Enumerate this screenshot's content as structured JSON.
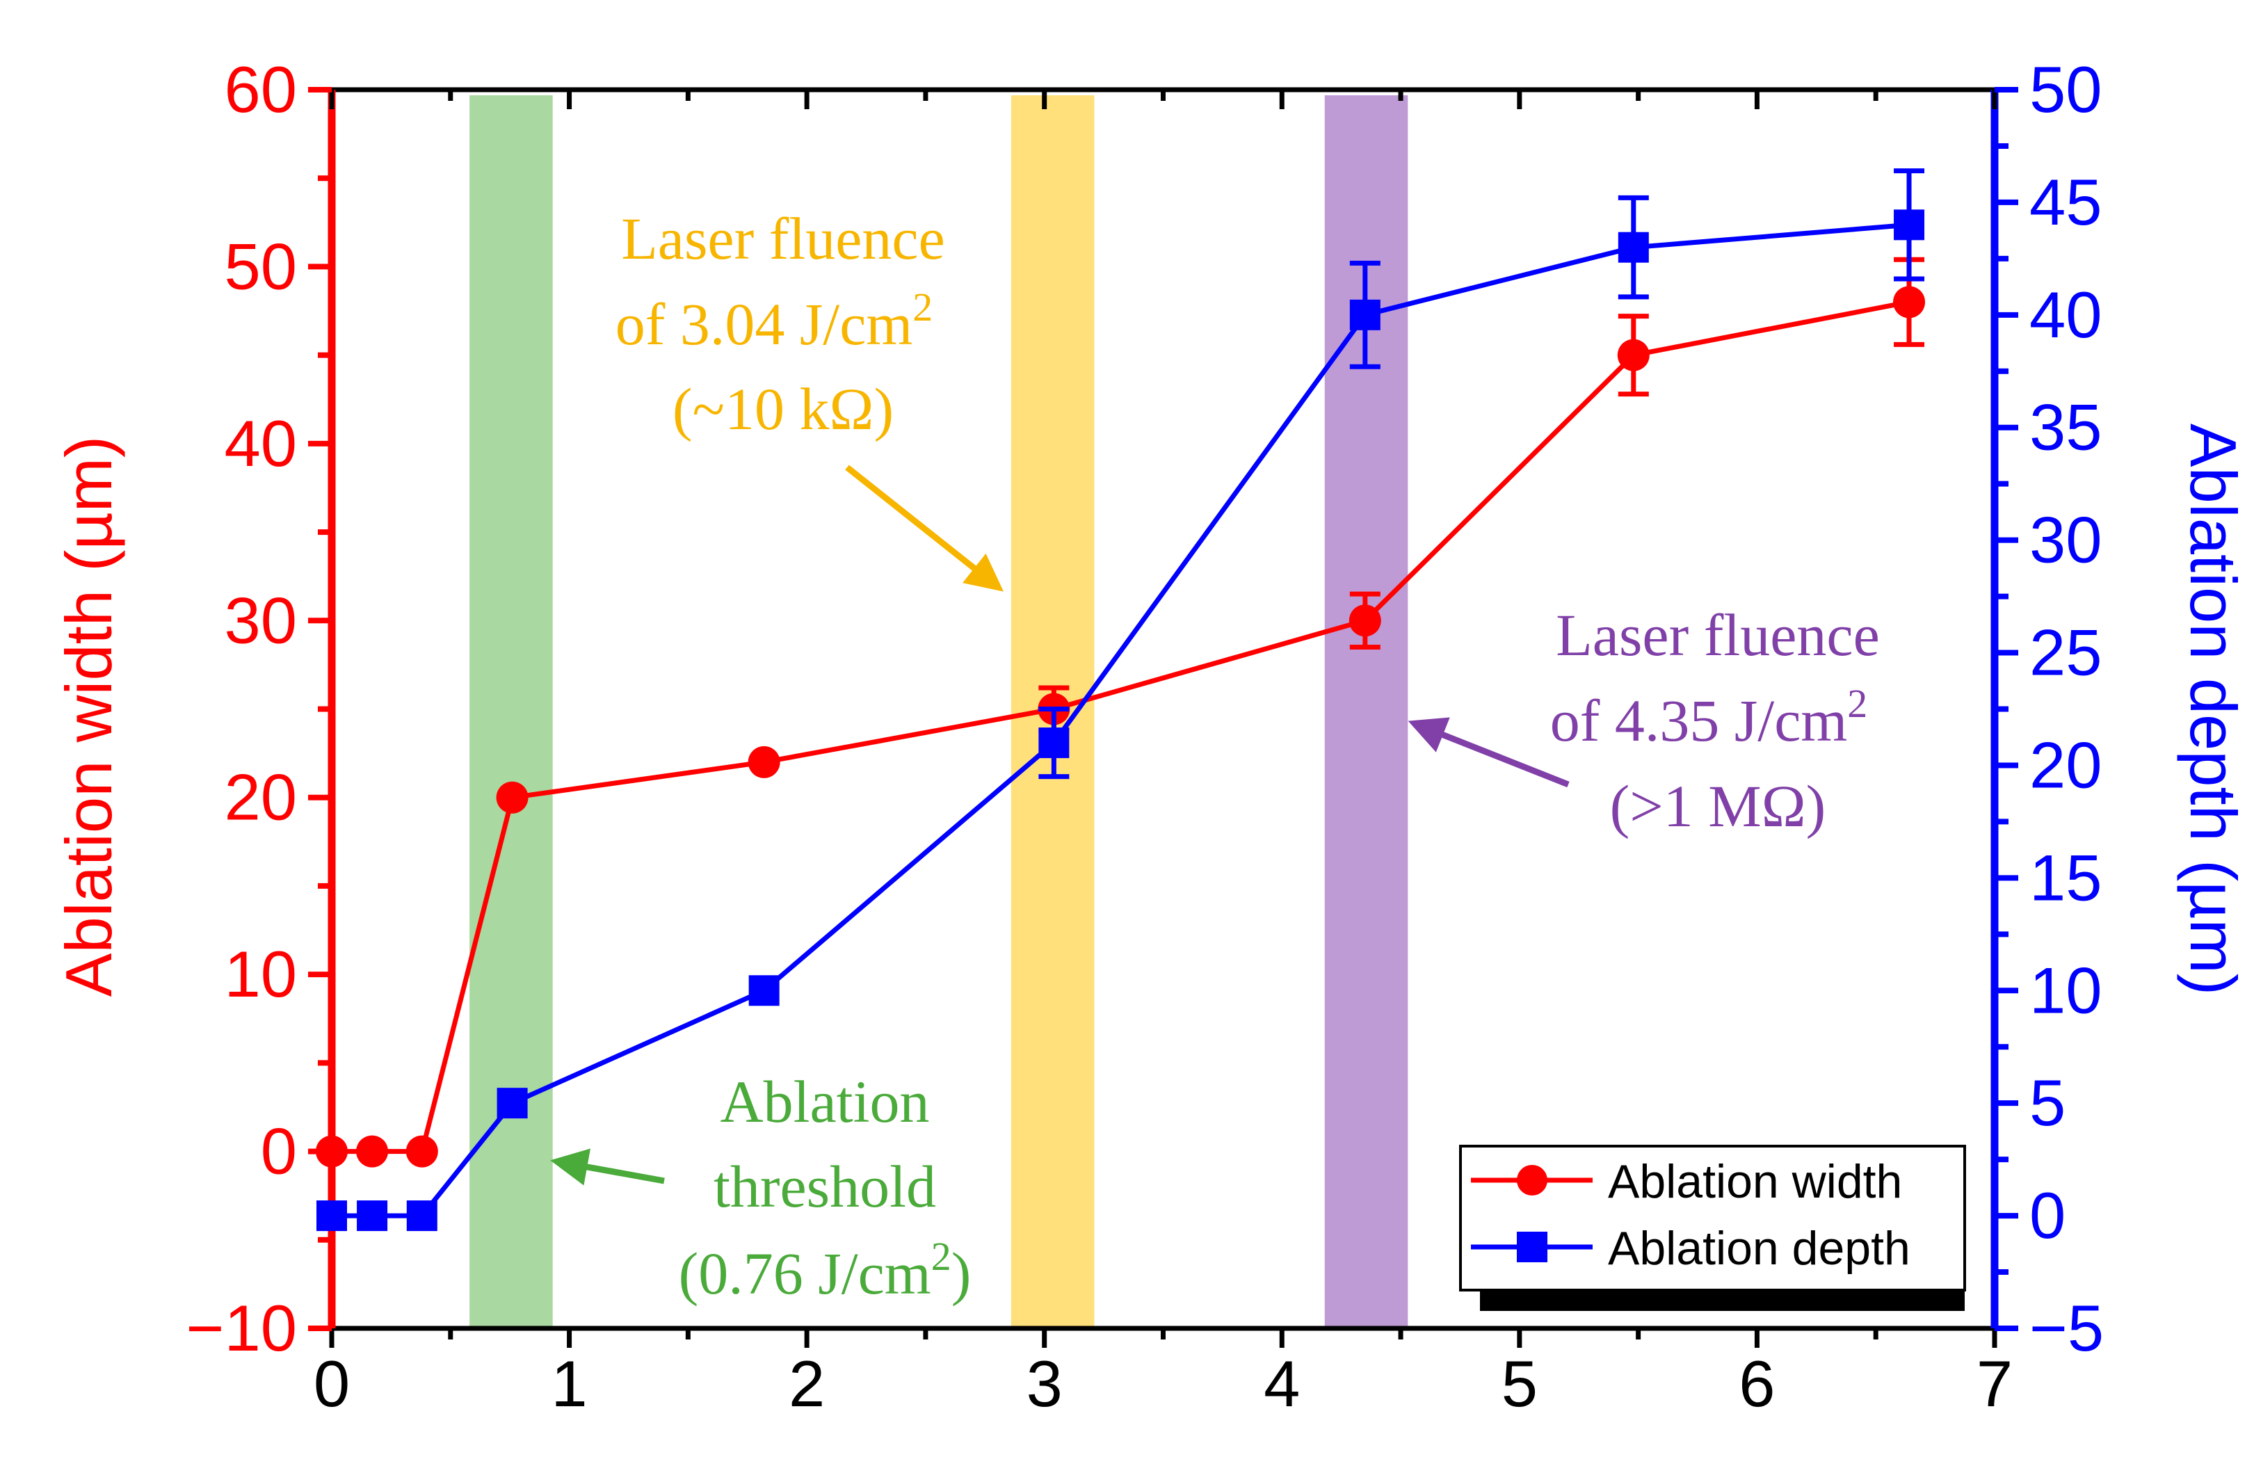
{
  "chart_data": {
    "type": "line",
    "x": [
      0,
      0.17,
      0.38,
      0.76,
      1.82,
      3.04,
      4.35,
      5.48,
      6.64
    ],
    "xlim": [
      0,
      7
    ],
    "x_ticks": [
      "0",
      "1",
      "2",
      "3",
      "4",
      "5",
      "6",
      "7"
    ],
    "xlabel": "",
    "series": [
      {
        "name": "Ablation width",
        "axis": "left",
        "marker": "circle",
        "color": "#ff0000",
        "values": [
          0,
          0,
          0,
          20,
          22,
          25,
          30,
          45,
          48
        ],
        "errors": [
          0,
          0,
          0,
          0,
          0,
          1.2,
          1.5,
          2.2,
          2.4
        ]
      },
      {
        "name": "Ablation depth",
        "axis": "right",
        "marker": "square",
        "color": "#0000ff",
        "values": [
          0,
          0,
          0,
          5,
          10,
          21,
          40,
          43,
          44
        ],
        "errors": [
          0,
          0,
          0,
          0,
          0,
          1.5,
          2.3,
          2.2,
          2.4
        ]
      }
    ],
    "y_left": {
      "label": "Ablation width (µm)",
      "ylim": [
        -10,
        60
      ],
      "ticks": [
        "−10",
        "0",
        "10",
        "20",
        "30",
        "40",
        "50",
        "60"
      ],
      "color": "#ff0000"
    },
    "y_right": {
      "label": "Ablation depth (µm)",
      "ylim": [
        -5,
        50
      ],
      "ticks": [
        "−5",
        "0",
        "5",
        "10",
        "15",
        "20",
        "25",
        "30",
        "35",
        "40",
        "45",
        "50"
      ],
      "color": "#0000ff"
    },
    "bands": [
      {
        "name": "ablation-threshold",
        "x0": 0.58,
        "x1": 0.93,
        "color": "#a9d8a0"
      },
      {
        "name": "fluence-3.04",
        "x0": 2.86,
        "x1": 3.21,
        "color": "#ffe07a"
      },
      {
        "name": "fluence-4.35",
        "x0": 4.18,
        "x1": 4.53,
        "color": "#bf9bd6"
      }
    ],
    "annotations": [
      {
        "name": "ablation-threshold",
        "color": "#4aaa3a",
        "lines": [
          "Ablation",
          "threshold",
          "(0.76 J/cm",
          "2",
          ")"
        ]
      },
      {
        "name": "fluence-3.04",
        "color": "#f7b500",
        "lines": [
          "Laser fluence",
          "of 3.04 J/cm",
          "2",
          "(~10 kΩ)"
        ]
      },
      {
        "name": "fluence-4.35",
        "color": "#8040a8",
        "lines": [
          "Laser fluence",
          "of 4.35 J/cm",
          "2",
          "(>1 MΩ)"
        ]
      }
    ],
    "legend": {
      "position": "bottom-right",
      "entries": [
        "Ablation width",
        "Ablation depth"
      ]
    }
  }
}
